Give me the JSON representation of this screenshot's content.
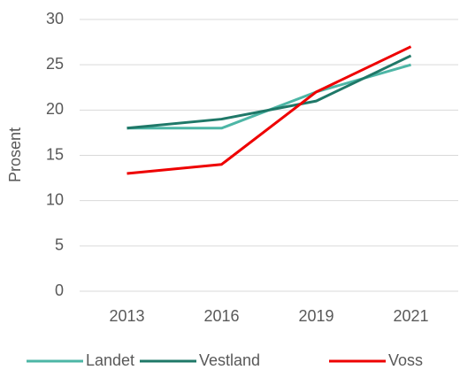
{
  "chart_data": {
    "type": "line",
    "y_label": "Prosent",
    "categories": [
      "2013",
      "2016",
      "2019",
      "2021"
    ],
    "series": [
      {
        "name": "Landet",
        "color": "#4db6a6",
        "values": [
          18,
          18,
          22,
          25
        ]
      },
      {
        "name": "Vestland",
        "color": "#1f7868",
        "values": [
          18,
          19,
          21,
          26
        ]
      },
      {
        "name": "Voss",
        "color": "#ee0000",
        "values": [
          13,
          14,
          22,
          27
        ]
      }
    ],
    "ylim": [
      0,
      30
    ],
    "yticks": [
      0,
      5,
      10,
      15,
      20,
      25,
      30
    ],
    "grid": true,
    "legend": "bottom"
  }
}
